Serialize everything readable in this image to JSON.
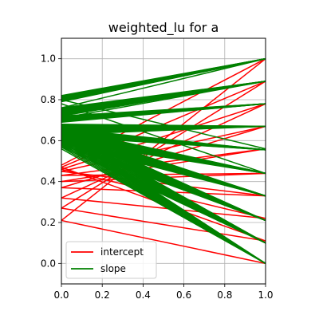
{
  "chart_data": {
    "type": "line",
    "title": "weighted_lu for a",
    "xlabel": "",
    "ylabel": "",
    "xlim": [
      0.0,
      1.0
    ],
    "ylim": [
      -0.1,
      1.1
    ],
    "x_ticks": [
      "0.0",
      "0.2",
      "0.4",
      "0.6",
      "0.8",
      "1.0"
    ],
    "y_ticks": [
      "0.0",
      "0.2",
      "0.4",
      "0.6",
      "0.8",
      "1.0"
    ],
    "x_tick_values": [
      0.0,
      0.2,
      0.4,
      0.6,
      0.8,
      1.0
    ],
    "y_tick_values": [
      0.0,
      0.2,
      0.4,
      0.6,
      0.8,
      1.0
    ],
    "grid": true,
    "legend_position": "lower-left",
    "legend": [
      {
        "label": "intercept",
        "color": "#ff0000"
      },
      {
        "label": "slope",
        "color": "#008000"
      }
    ],
    "series": [
      {
        "name": "intercept",
        "color": "#ff0000",
        "segments": [
          [
            [
              0,
              0.21
            ],
            [
              1,
              1.0
            ]
          ],
          [
            [
              0,
              0.27
            ],
            [
              1,
              0.89
            ]
          ],
          [
            [
              0,
              0.32
            ],
            [
              1,
              0.78
            ]
          ],
          [
            [
              0,
              0.37
            ],
            [
              1,
              0.67
            ]
          ],
          [
            [
              0,
              0.4
            ],
            [
              1,
              0.56
            ]
          ],
          [
            [
              0,
              0.43
            ],
            [
              1,
              0.44
            ]
          ],
          [
            [
              0,
              0.45
            ],
            [
              1,
              0.33
            ]
          ],
          [
            [
              0,
              0.46
            ],
            [
              1,
              0.22
            ]
          ],
          [
            [
              0,
              0.47
            ],
            [
              1,
              0.11
            ]
          ],
          [
            [
              0,
              0.21
            ],
            [
              1,
              0.0
            ]
          ],
          [
            [
              0,
              0.27
            ],
            [
              1,
              0.11
            ]
          ],
          [
            [
              0,
              0.32
            ],
            [
              1,
              0.22
            ]
          ],
          [
            [
              0,
              0.37
            ],
            [
              1,
              0.33
            ]
          ],
          [
            [
              0,
              0.4
            ],
            [
              1,
              0.44
            ]
          ],
          [
            [
              0,
              0.43
            ],
            [
              1,
              0.56
            ]
          ],
          [
            [
              0,
              0.45
            ],
            [
              1,
              0.67
            ]
          ],
          [
            [
              0,
              0.46
            ],
            [
              1,
              0.78
            ]
          ],
          [
            [
              0,
              0.47
            ],
            [
              1,
              0.89
            ]
          ],
          [
            [
              0,
              0.48
            ],
            [
              1,
              1.0
            ]
          ]
        ]
      },
      {
        "name": "slope",
        "color": "#008000",
        "bands": [
          {
            "x0": 0,
            "y0_range": [
              0.79,
              0.82
            ],
            "x1": 1,
            "y1": 1.0
          },
          {
            "x0": 0,
            "y0_range": [
              0.72,
              0.76
            ],
            "x1": 1,
            "y1": 0.89
          },
          {
            "x0": 0,
            "y0_range": [
              0.69,
              0.72
            ],
            "x1": 1,
            "y1": 0.78
          },
          {
            "x0": 0,
            "y0_range": [
              0.63,
              0.68
            ],
            "x1": 1,
            "y1": 0.67
          },
          {
            "x0": 0,
            "y0_range": [
              0.62,
              0.66
            ],
            "x1": 1,
            "y1": 0.555
          },
          {
            "x0": 0,
            "y0_range": [
              0.6,
              0.66
            ],
            "x1": 1,
            "y1": 0.44
          },
          {
            "x0": 0,
            "y0_range": [
              0.59,
              0.66
            ],
            "x1": 1,
            "y1": 0.33
          },
          {
            "x0": 0,
            "y0_range": [
              0.58,
              0.66
            ],
            "x1": 1,
            "y1": 0.21
          },
          {
            "x0": 0,
            "y0_range": [
              0.57,
              0.66
            ],
            "x1": 1,
            "y1": 0.1
          },
          {
            "x0": 0,
            "y0_range": [
              0.56,
              0.65
            ],
            "x1": 1,
            "y1": 0.0
          }
        ],
        "extra_segments": [
          [
            [
              0,
              0.76
            ],
            [
              1,
              1.0
            ]
          ],
          [
            [
              0,
              0.8
            ],
            [
              1,
              0.56
            ]
          ],
          [
            [
              0,
              0.78
            ],
            [
              1,
              0.44
            ]
          ],
          [
            [
              0,
              0.71
            ],
            [
              1,
              0.89
            ]
          ]
        ]
      }
    ]
  }
}
